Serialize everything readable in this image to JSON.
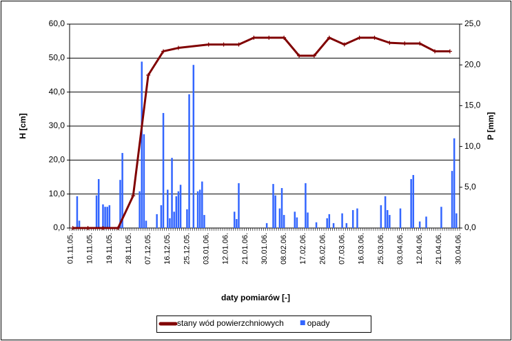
{
  "chart_data": {
    "type": "bar-line",
    "x_label": "daty pomiarów [-]",
    "y_label": "H [cm]",
    "y2_label": "P [mm]",
    "xlim": [
      "01.11.05.",
      "30.04.06."
    ],
    "xticks": [
      "01.11.05.",
      "10.11.05.",
      "19.11.05.",
      "28.11.05.",
      "07.12.05.",
      "16.12.05.",
      "25.12.05.",
      "03.01.06.",
      "12.01.06.",
      "21.01.06.",
      "30.01.06.",
      "08.02.06.",
      "17.02.06.",
      "26.02.06.",
      "07.03.06.",
      "16.03.06.",
      "25.03.06.",
      "03.04.06.",
      "12.04.06.",
      "21.04.06.",
      "30.04.06."
    ],
    "ylim": [
      0,
      60
    ],
    "yticks": [
      {
        "value": 0,
        "label": "0,0"
      },
      {
        "value": 10,
        "label": "10,0"
      },
      {
        "value": 20,
        "label": "20,0"
      },
      {
        "value": 30,
        "label": "30,0"
      },
      {
        "value": 40,
        "label": "40,0"
      },
      {
        "value": 50,
        "label": "50,0"
      },
      {
        "value": 60,
        "label": "60,0"
      }
    ],
    "y2lim": [
      0,
      25
    ],
    "y2ticks": [
      {
        "value": 0,
        "label": "0,0"
      },
      {
        "value": 5,
        "label": "5,0"
      },
      {
        "value": 10,
        "label": "10,0"
      },
      {
        "value": 15,
        "label": "15,0"
      },
      {
        "value": 20,
        "label": "20,0"
      },
      {
        "value": 25,
        "label": "25,0"
      }
    ],
    "grid": true,
    "legend": "bottom",
    "series": [
      {
        "name": "stany wód powierzchniowych",
        "type": "line",
        "color": "#800000",
        "x": [
          "02.11.05.",
          "09.11.05.",
          "16.11.05.",
          "23.11.05.",
          "30.11.05.",
          "07.12.05.",
          "14.12.05.",
          "21.12.05.",
          "04.01.06.",
          "11.01.06.",
          "18.01.06.",
          "25.01.06.",
          "01.02.06.",
          "08.02.06.",
          "15.02.06.",
          "22.02.06.",
          "01.03.06.",
          "08.03.06.",
          "15.03.06.",
          "22.03.06.",
          "29.03.06.",
          "05.04.06.",
          "12.04.06.",
          "19.04.06.",
          "26.04.06."
        ],
        "values": [
          0,
          0,
          0,
          0,
          9.5,
          45,
          52,
          53,
          54,
          54,
          54,
          56,
          56,
          56,
          50.7,
          50.7,
          56,
          54,
          56,
          56,
          54.5,
          54.3,
          54.3,
          52,
          52
        ]
      },
      {
        "name": "opady",
        "type": "bar",
        "axis": "y2",
        "color": "#3366ff",
        "x": [
          "04.11.05.",
          "05.11.05.",
          "13.11.05.",
          "14.11.05.",
          "16.11.05.",
          "17.11.05.",
          "18.11.05.",
          "19.11.05.",
          "24.11.05.",
          "25.11.05.",
          "03.12.05.",
          "04.12.05.",
          "05.12.05.",
          "06.12.05.",
          "11.12.05.",
          "13.12.05.",
          "14.12.05.",
          "16.12.05.",
          "17.12.05.",
          "18.12.05.",
          "19.12.05.",
          "20.12.05.",
          "21.12.05.",
          "22.12.05.",
          "25.12.05.",
          "26.12.05.",
          "28.12.05.",
          "30.12.05.",
          "31.12.05.",
          "01.01.06.",
          "02.01.06.",
          "16.01.06.",
          "17.01.06.",
          "18.01.06.",
          "31.01.06.",
          "03.02.06.",
          "04.02.06.",
          "06.02.06.",
          "07.02.06.",
          "08.02.06.",
          "13.02.06.",
          "14.02.06.",
          "18.02.06.",
          "19.02.06.",
          "23.02.06.",
          "28.02.06.",
          "01.03.06.",
          "03.03.06.",
          "07.03.06.",
          "09.03.06.",
          "12.03.06.",
          "14.03.06.",
          "25.03.06.",
          "27.03.06.",
          "28.03.06.",
          "29.03.06.",
          "03.04.06.",
          "08.04.06.",
          "09.04.06.",
          "12.04.06.",
          "15.04.06.",
          "22.04.06.",
          "27.04.06.",
          "28.04.06.",
          "29.04.06."
        ],
        "values": [
          3.9,
          0.9,
          4,
          6,
          2.9,
          2.6,
          2.6,
          2.8,
          5.9,
          9.2,
          4.5,
          20.4,
          11.5,
          0.9,
          1.7,
          2.8,
          14.1,
          4.7,
          1.2,
          8.6,
          2,
          3.9,
          4.5,
          5.3,
          2.3,
          16.4,
          20,
          4.5,
          4.7,
          5.7,
          1.6,
          2,
          1.1,
          5.5,
          0.6,
          5.4,
          4,
          2.4,
          4.9,
          1.6,
          2,
          1.3,
          5.5,
          1.9,
          0.7,
          1.2,
          1.7,
          0.6,
          1.8,
          0.6,
          2.2,
          2.4,
          2.8,
          3.9,
          2.2,
          1.6,
          2.4,
          6,
          6.5,
          0.8,
          1.4,
          2.6,
          7,
          11,
          1.8
        ]
      }
    ]
  }
}
